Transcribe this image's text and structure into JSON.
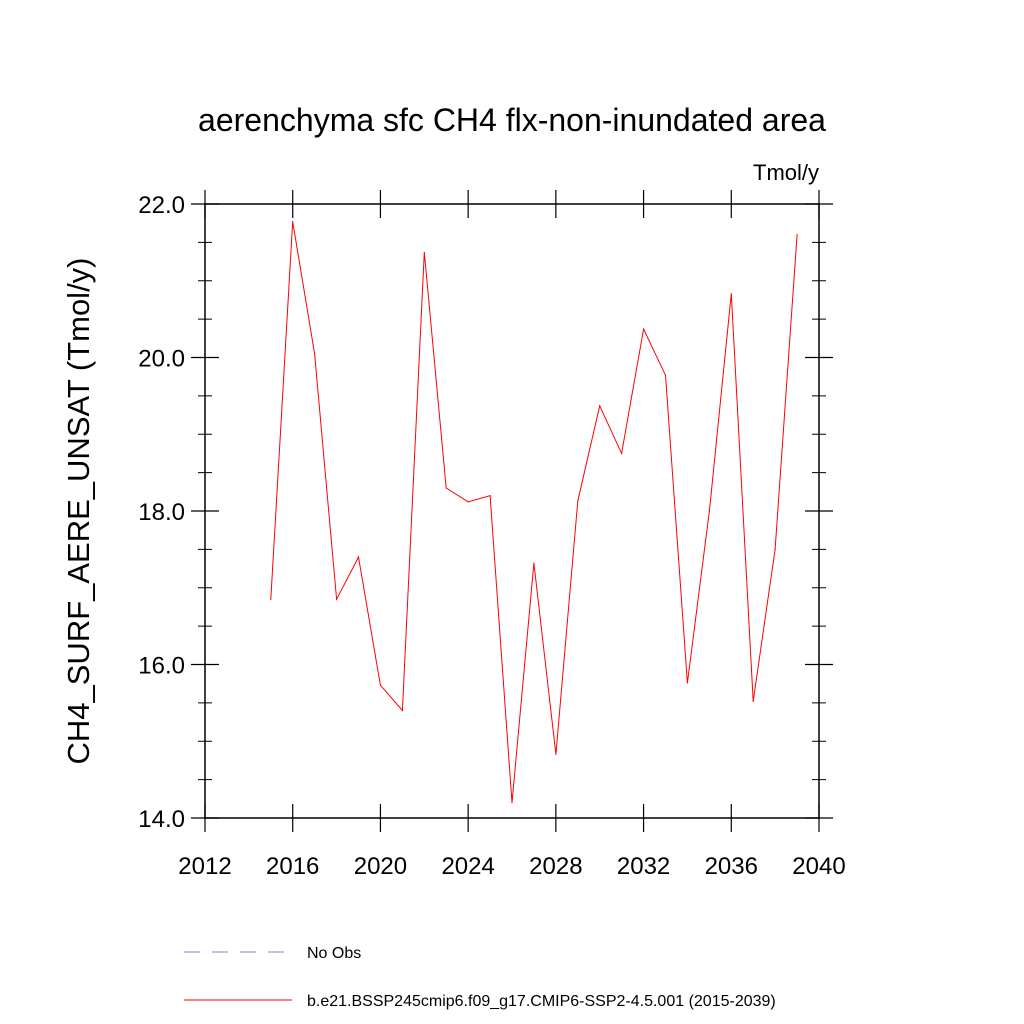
{
  "chart_data": {
    "type": "line",
    "title": "aerenchyma sfc CH4 flx-non-inundated area",
    "units": "Tmol/y",
    "ylabel": "CH4_SURF_AERE_UNSAT  (Tmol/y)",
    "xlabel": "",
    "xlim": [
      2012,
      2040
    ],
    "ylim": [
      14.0,
      22.0
    ],
    "x_ticks": [
      2012,
      2016,
      2020,
      2024,
      2028,
      2032,
      2036,
      2040
    ],
    "x_tick_labels": [
      "2012",
      "2016",
      "2020",
      "2024",
      "2028",
      "2032",
      "2036",
      "2040"
    ],
    "y_ticks": [
      14.0,
      16.0,
      18.0,
      20.0,
      22.0
    ],
    "y_tick_labels": [
      "14.0",
      "16.0",
      "18.0",
      "20.0",
      "22.0"
    ],
    "grid": false,
    "legend_position": "bottom",
    "series": [
      {
        "name": "b.e21.BSSP245cmip6.f09_g17.CMIP6-SSP2-4.5.001 (2015-2039)",
        "color": "#ff0000",
        "style": "solid",
        "x": [
          2015,
          2016,
          2017,
          2018,
          2019,
          2020,
          2021,
          2022,
          2023,
          2024,
          2025,
          2026,
          2027,
          2028,
          2029,
          2030,
          2031,
          2032,
          2033,
          2034,
          2035,
          2036,
          2037,
          2038,
          2039
        ],
        "y": [
          16.85,
          21.77,
          20.05,
          16.85,
          17.4,
          15.73,
          15.4,
          21.37,
          18.3,
          18.12,
          18.2,
          14.2,
          17.32,
          14.83,
          18.13,
          19.37,
          18.75,
          20.37,
          19.77,
          15.76,
          18.0,
          20.83,
          15.52,
          17.5,
          21.6
        ]
      },
      {
        "name": "No Obs",
        "color": "#8080c0",
        "style": "dashed",
        "x": [],
        "y": []
      }
    ]
  }
}
